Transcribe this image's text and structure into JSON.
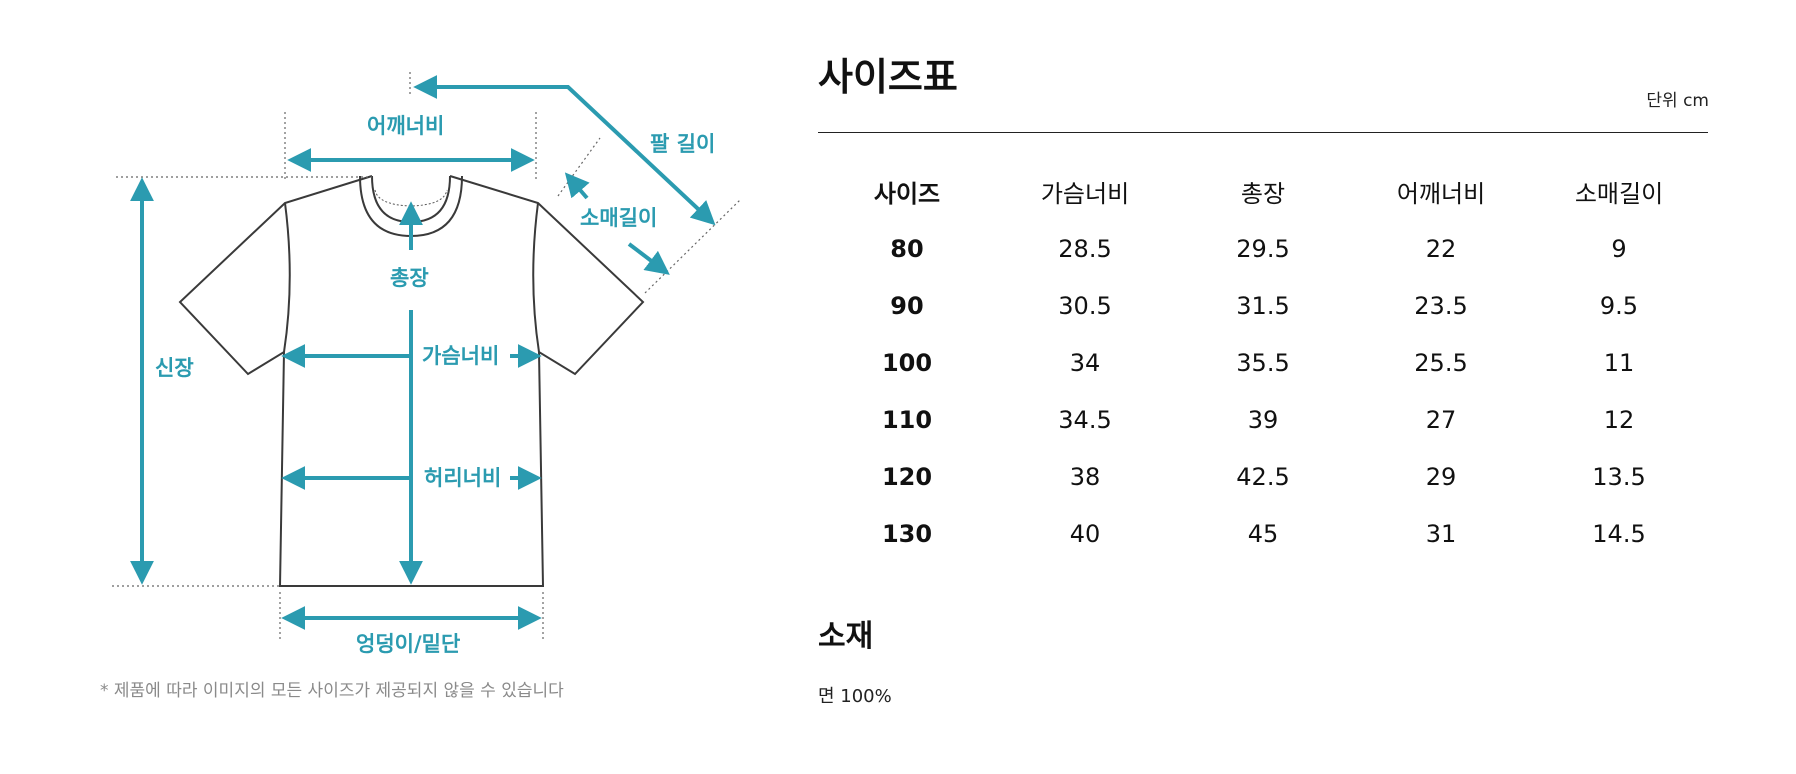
{
  "diagram": {
    "labels": {
      "shoulder": "어깨너비",
      "arm_length": "팔 길이",
      "sleeve": "소매길이",
      "total_length": "총장",
      "height": "신장",
      "chest": "가슴너비",
      "waist": "허리너비",
      "hem": "엉덩이/밑단"
    },
    "note": "* 제품에 따라 이미지의 모든 사이즈가 제공되지 않을 수 있습니다",
    "accent_color": "#2b9bb0"
  },
  "size_chart": {
    "title": "사이즈표",
    "unit": "단위 cm",
    "headers": [
      "사이즈",
      "가슴너비",
      "총장",
      "어깨너비",
      "소매길이"
    ],
    "rows": [
      [
        "80",
        "28.5",
        "29.5",
        "22",
        "9"
      ],
      [
        "90",
        "30.5",
        "31.5",
        "23.5",
        "9.5"
      ],
      [
        "100",
        "34",
        "35.5",
        "25.5",
        "11"
      ],
      [
        "110",
        "34.5",
        "39",
        "27",
        "12"
      ],
      [
        "120",
        "38",
        "42.5",
        "29",
        "13.5"
      ],
      [
        "130",
        "40",
        "45",
        "31",
        "14.5"
      ]
    ]
  },
  "material": {
    "title": "소재",
    "value": "면 100%"
  }
}
